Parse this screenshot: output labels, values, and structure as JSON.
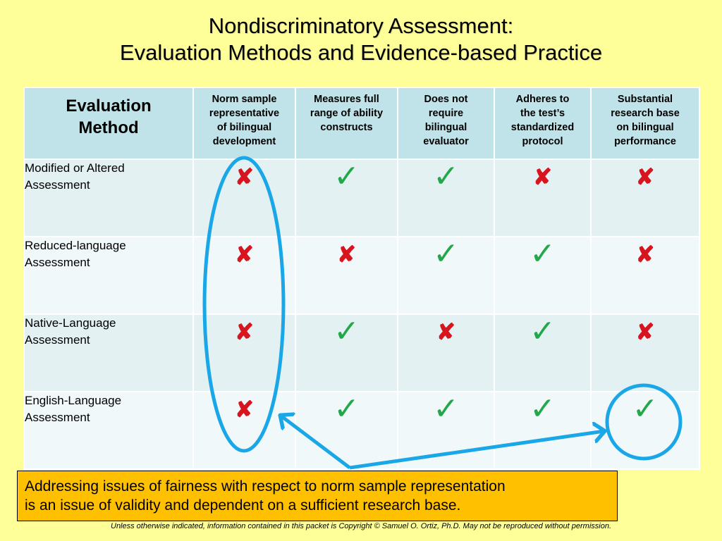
{
  "title": {
    "line1": "Nondiscriminatory Assessment:",
    "line2": "Evaluation Methods and Evidence-based Practice"
  },
  "table": {
    "corner_header": {
      "line1": "Evaluation",
      "line2": "Method"
    },
    "columns": [
      {
        "lines": [
          "Norm sample",
          "representative",
          "of bilingual",
          "development"
        ]
      },
      {
        "lines": [
          "Measures full",
          "range of ability",
          "constructs"
        ]
      },
      {
        "lines": [
          "Does not",
          "require",
          "bilingual",
          "evaluator"
        ]
      },
      {
        "lines": [
          "Adheres to",
          "the test’s",
          "standardized",
          "protocol"
        ]
      },
      {
        "lines": [
          "Substantial",
          "research base",
          "on bilingual",
          "performance"
        ]
      }
    ],
    "rows": [
      {
        "line1": "Modified or Altered",
        "line2": "Assessment",
        "marks": [
          "cross",
          "check",
          "check",
          "cross",
          "cross"
        ]
      },
      {
        "line1": "Reduced-language",
        "line2": "Assessment",
        "marks": [
          "cross",
          "cross",
          "check",
          "check",
          "cross"
        ]
      },
      {
        "line1": "Native-Language",
        "line2": "Assessment",
        "marks": [
          "cross",
          "check",
          "cross",
          "check",
          "cross"
        ]
      },
      {
        "line1": "English-Language",
        "line2": "Assessment",
        "marks": [
          "cross",
          "check",
          "check",
          "check",
          "check"
        ]
      }
    ]
  },
  "symbols": {
    "check": "✓",
    "cross": "✘"
  },
  "colors": {
    "background": "#FFFF99",
    "header_cell": "#BFE3E8",
    "body_cell": "#E4F1F3",
    "check": "#22A84A",
    "cross": "#D8141E",
    "annotation": "#1AA7E8",
    "note_box": "#FFC000"
  },
  "note": {
    "line1": "Addressing issues of fairness with respect to norm sample representation",
    "line2": "is an issue of validity and dependent on a sufficient research base."
  },
  "footer": "Unless otherwise indicated, information contained in this packet is Copyright © Samuel O. Ortiz, Ph.D.  May not be reproduced without permission."
}
